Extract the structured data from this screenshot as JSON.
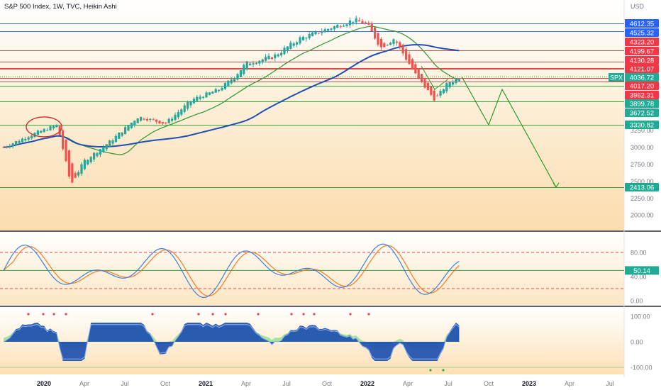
{
  "title": "S&P 500 Index, 1W, TVC, Heikin Ashi",
  "currency": "USD",
  "symbol_badge": "SPX",
  "colors": {
    "up": "#26a69a",
    "down": "#ef5350",
    "ma_long": "#1f4fb5",
    "ma_mid": "#3a9a3a",
    "hline_red": "#e04848",
    "hline_blue": "#3b6fd4",
    "hline_green": "#3aa03a",
    "stoch_k": "#3d7fe0",
    "stoch_d": "#f27a24",
    "badge_blue": "#2962ff",
    "badge_red": "#f23645",
    "badge_green": "#22ab94"
  },
  "chart_data": {
    "type": "candlestick",
    "x_ticks": [
      "2020",
      "Apr",
      "Jul",
      "Oct",
      "2021",
      "Apr",
      "Jul",
      "Oct",
      "2022",
      "Apr",
      "Jul",
      "Oct",
      "2023",
      "Apr",
      "Jul"
    ],
    "price_axis_ticks": [
      "3250.00",
      "3000.00",
      "2750.00",
      "2500.00",
      "2250.00",
      "2000.00"
    ],
    "price_levels": [
      {
        "value": "4612.35",
        "color": "blue"
      },
      {
        "value": "4525.32",
        "color": "blue"
      },
      {
        "value": "4323.20",
        "color": "red"
      },
      {
        "value": "4199.67",
        "color": "red"
      },
      {
        "value": "4130.28",
        "color": "red"
      },
      {
        "value": "4121.07",
        "color": "red"
      },
      {
        "value": "4036.72",
        "color": "green",
        "label": "SPX"
      },
      {
        "value": "4017.20",
        "color": "red"
      },
      {
        "value": "3962.31",
        "color": "red"
      },
      {
        "value": "3899.78",
        "color": "green"
      },
      {
        "value": "3672.52",
        "color": "green"
      },
      {
        "value": "3330.82",
        "color": "green"
      },
      {
        "value": "2413.06",
        "color": "green"
      }
    ],
    "close_path": [
      [
        "2019-10",
        3000
      ],
      [
        "2019-12",
        3180
      ],
      [
        "2020-02",
        3330
      ],
      [
        "2020-03",
        2450
      ],
      [
        "2020-04",
        2800
      ],
      [
        "2020-06",
        3100
      ],
      [
        "2020-08",
        3450
      ],
      [
        "2020-10",
        3350
      ],
      [
        "2020-12",
        3700
      ],
      [
        "2021-02",
        3850
      ],
      [
        "2021-04",
        4180
      ],
      [
        "2021-06",
        4250
      ],
      [
        "2021-08",
        4450
      ],
      [
        "2021-10",
        4550
      ],
      [
        "2021-12",
        4650
      ],
      [
        "2022-01",
        4600
      ],
      [
        "2022-02",
        4350
      ],
      [
        "2022-03",
        4450
      ],
      [
        "2022-04",
        4200
      ],
      [
        "2022-05",
        3950
      ],
      [
        "2022-06",
        3700
      ],
      [
        "2022-07",
        3950
      ],
      [
        "2022-08",
        4036.72
      ]
    ],
    "projection_path": [
      [
        "2022-08",
        4036.72
      ],
      [
        "2022-10",
        3330
      ],
      [
        "2022-11",
        3850
      ],
      [
        "2023-03",
        2413.06
      ]
    ],
    "stochastic": {
      "axis_ticks": [
        "80.00",
        "40.00",
        "0.00"
      ],
      "levels": [
        80,
        20
      ],
      "current_value": "50.14"
    },
    "lower_oscillator": {
      "axis_ticks": [
        "100.00",
        "0.00",
        "-100.00"
      ]
    }
  }
}
